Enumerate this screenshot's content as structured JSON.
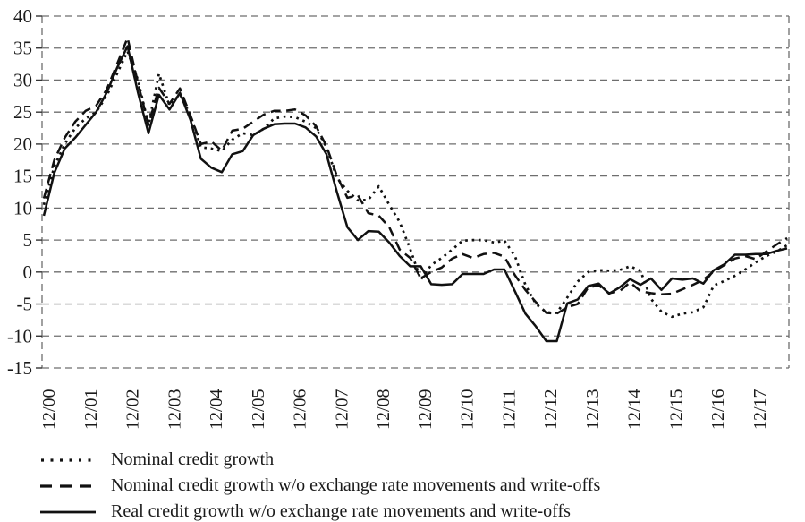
{
  "figure": {
    "background": "#ffffff",
    "line_color": "#111111",
    "grid_color": "#6e6e6e",
    "text_color": "#1a1a1a"
  },
  "chart_data": {
    "type": "line",
    "title": "",
    "xlabel": "",
    "ylabel": "",
    "ylim": [
      -15,
      40
    ],
    "y_tick_labels": [
      "40",
      "35",
      "30",
      "25",
      "20",
      "15",
      "10",
      "5",
      "0",
      "-5",
      "-10",
      "-15"
    ],
    "y_ticks": [
      40,
      35,
      30,
      25,
      20,
      15,
      10,
      5,
      0,
      -5,
      -10,
      -15
    ],
    "x_year_tick_labels": [
      "12/00",
      "12/01",
      "12/02",
      "12/03",
      "12/04",
      "12/05",
      "12/06",
      "12/07",
      "12/08",
      "12/09",
      "12/10",
      "12/11",
      "12/12",
      "12/13",
      "12/14",
      "12/15",
      "12/16",
      "12/17"
    ],
    "x": [
      "12/00",
      "3/01",
      "6/01",
      "9/01",
      "12/01",
      "3/02",
      "6/02",
      "9/02",
      "12/02",
      "3/03",
      "6/03",
      "9/03",
      "12/03",
      "3/04",
      "6/04",
      "9/04",
      "12/04",
      "3/05",
      "6/05",
      "9/05",
      "12/05",
      "3/06",
      "6/06",
      "9/06",
      "12/06",
      "3/07",
      "6/07",
      "9/07",
      "12/07",
      "3/08",
      "6/08",
      "9/08",
      "12/08",
      "3/09",
      "6/09",
      "9/09",
      "12/09",
      "3/10",
      "6/10",
      "9/10",
      "12/10",
      "3/11",
      "6/11",
      "9/11",
      "12/11",
      "3/12",
      "6/12",
      "9/12",
      "12/12",
      "3/13",
      "6/13",
      "9/13",
      "12/13",
      "3/14",
      "6/14",
      "9/14",
      "12/14",
      "3/15",
      "6/15",
      "9/15",
      "12/15",
      "3/16",
      "6/16",
      "9/16",
      "12/16",
      "3/17",
      "6/17",
      "9/17",
      "12/17",
      "3/18",
      "6/18",
      "9/18"
    ],
    "grid": "horizontal dashed, dashed plot border",
    "legend_position": "bottom-left",
    "series": [
      {
        "name": "Nominal credit growth",
        "style": "dotted",
        "values": [
          10.5,
          16.5,
          20.0,
          22.5,
          24.0,
          25.0,
          27.5,
          31.0,
          34.5,
          30.0,
          23.0,
          31.0,
          26.0,
          27.8,
          24.5,
          19.5,
          19.3,
          18.9,
          20.7,
          21.7,
          21.4,
          22.4,
          24.0,
          24.3,
          24.2,
          23.5,
          22.5,
          19.5,
          14.7,
          12.7,
          11.2,
          11.3,
          13.4,
          10.5,
          7.8,
          3.6,
          -1.2,
          1.1,
          2.2,
          3.5,
          4.9,
          5.0,
          5.0,
          4.6,
          4.9,
          2.5,
          -2.0,
          -5.0,
          -6.3,
          -6.4,
          -4.0,
          -1.5,
          0.0,
          0.3,
          0.2,
          0.3,
          0.9,
          0.2,
          -4.2,
          -6.2,
          -7.0,
          -6.5,
          -6.3,
          -5.5,
          -2.1,
          -1.4,
          -0.6,
          0.4,
          1.5,
          2.5,
          3.2,
          4.2
        ]
      },
      {
        "name": "Nominal credit growth w/o exchange rate movements and write-offs",
        "style": "dashed",
        "values": [
          11.5,
          17.5,
          21.0,
          23.5,
          25.2,
          26.0,
          28.5,
          32.5,
          36.6,
          29.5,
          23.0,
          28.8,
          26.3,
          28.7,
          24.5,
          20.0,
          20.4,
          19.0,
          22.1,
          22.4,
          23.5,
          24.6,
          25.2,
          25.2,
          25.4,
          24.5,
          22.8,
          19.7,
          15.0,
          11.6,
          12.0,
          9.2,
          8.8,
          7.0,
          3.5,
          2.2,
          -1.0,
          0.0,
          0.7,
          2.1,
          2.8,
          2.2,
          2.8,
          3.0,
          2.4,
          -0.5,
          -2.8,
          -4.7,
          -6.4,
          -6.5,
          -5.5,
          -5.0,
          -2.4,
          -2.1,
          -3.3,
          -3.0,
          -1.6,
          -3.0,
          -3.3,
          -3.5,
          -3.4,
          -2.7,
          -2.0,
          -1.2,
          0.1,
          1.1,
          2.1,
          2.5,
          2.0,
          3.2,
          4.3,
          5.3
        ]
      },
      {
        "name": "Real credit growth w/o exchange rate movements and write-offs",
        "style": "solid",
        "values": [
          8.8,
          15.5,
          19.3,
          21.0,
          23.0,
          25.0,
          28.0,
          31.9,
          35.3,
          28.0,
          21.7,
          27.7,
          25.4,
          28.0,
          23.8,
          17.7,
          16.3,
          15.6,
          18.4,
          18.9,
          21.4,
          22.4,
          23.1,
          23.2,
          23.2,
          22.6,
          21.2,
          18.4,
          12.5,
          7.0,
          5.0,
          6.4,
          6.3,
          4.6,
          2.5,
          0.9,
          0.9,
          -1.9,
          -2.0,
          -1.9,
          -0.3,
          -0.3,
          -0.3,
          0.4,
          0.4,
          -3.0,
          -6.5,
          -8.5,
          -10.8,
          -10.8,
          -4.9,
          -4.3,
          -2.2,
          -1.8,
          -3.4,
          -2.4,
          -1.1,
          -2.0,
          -1.0,
          -2.8,
          -1.0,
          -1.2,
          -1.0,
          -1.8,
          0.3,
          1.2,
          2.7,
          2.7,
          2.8,
          2.8,
          3.3,
          3.7
        ]
      }
    ]
  }
}
